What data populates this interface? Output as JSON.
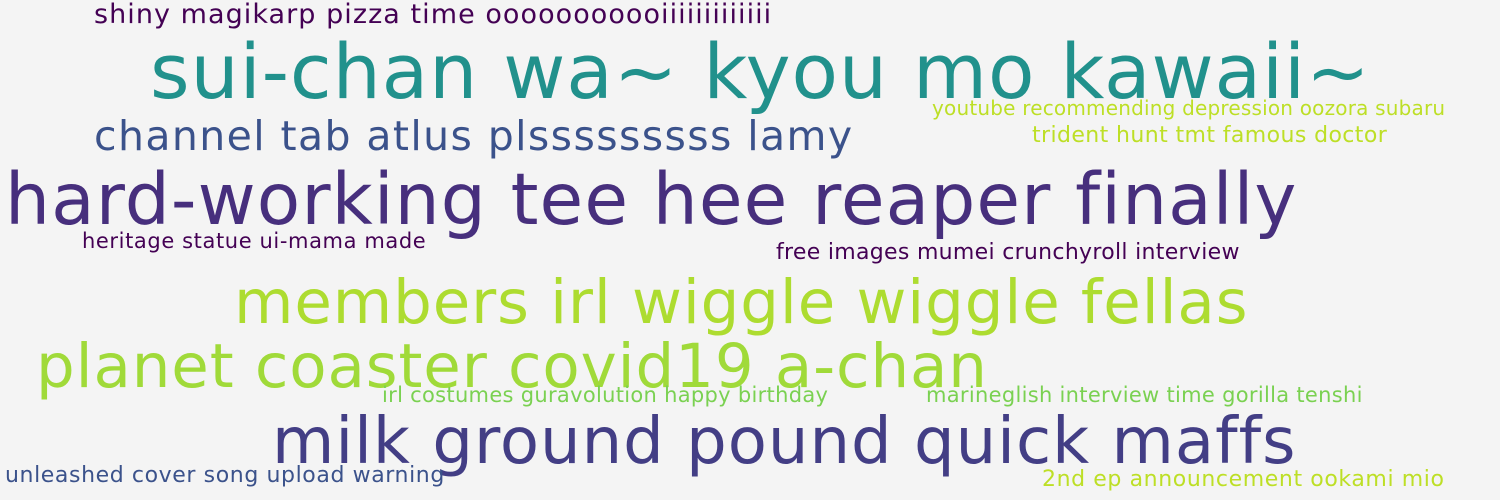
{
  "phrases": [
    {
      "text": "shiny magikarp pizza time ooooooooooiiiiiiiiiiiii",
      "color": "#440154"
    },
    {
      "text": "sui-chan wa~ kyou mo kawaii~",
      "color": "#21918c"
    },
    {
      "text": "youtube recommending depression oozora subaru",
      "color": "#bddf26"
    },
    {
      "text": "channel tab atlus plsssssssss lamy",
      "color": "#3b528b"
    },
    {
      "text": "trident hunt tmt famous doctor",
      "color": "#bddf26"
    },
    {
      "text": "hard-working tee hee reaper finally",
      "color": "#472f7d"
    },
    {
      "text": "heritage statue ui-mama made",
      "color": "#440154"
    },
    {
      "text": "free images mumei crunchyroll interview",
      "color": "#440154"
    },
    {
      "text": "members irl wiggle wiggle fellas",
      "color": "#addc30"
    },
    {
      "text": "planet coaster covid19 a-chan",
      "color": "#a0da39"
    },
    {
      "text": "irl costumes guravolution happy birthday",
      "color": "#7ad151"
    },
    {
      "text": "marineglish interview time gorilla tenshi",
      "color": "#7ad151"
    },
    {
      "text": "milk ground pound quick maffs",
      "color": "#433e85"
    },
    {
      "text": "unleashed cover song upload warning",
      "color": "#3b528b"
    },
    {
      "text": "2nd ep announcement ookami mio",
      "color": "#bddf26"
    }
  ]
}
